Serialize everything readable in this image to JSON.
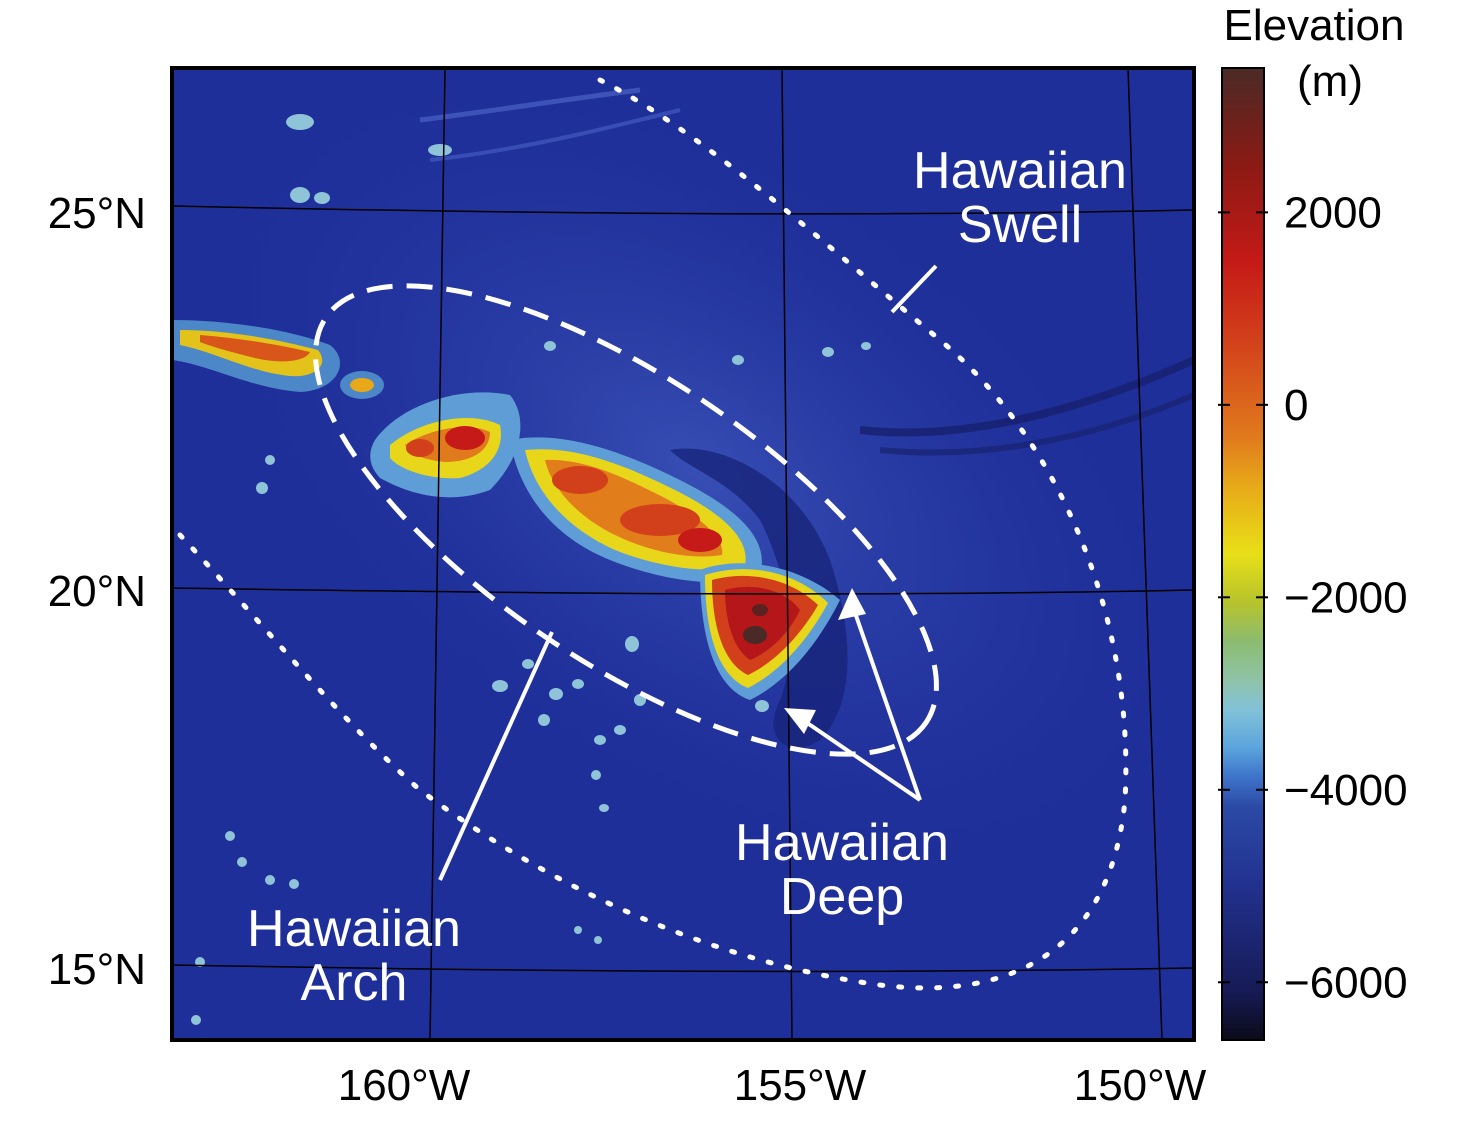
{
  "map": {
    "lat_labels": [
      "25°N",
      "20°N",
      "15°N"
    ],
    "lon_labels": [
      "160°W",
      "155°W",
      "150°W"
    ],
    "annotations": {
      "swell": [
        "Hawaiian",
        "Swell"
      ],
      "deep": [
        "Hawaiian",
        "Deep"
      ],
      "arch": [
        "Hawaiian",
        "Arch"
      ]
    }
  },
  "colorbar": {
    "title": [
      "Elevation",
      "(m)"
    ],
    "ticks": [
      "2000",
      "0",
      "−2000",
      "−4000",
      "−6000"
    ],
    "range": [
      -6600,
      3500
    ],
    "tick_values": [
      2000,
      0,
      -2000,
      -4000,
      -6000
    ]
  },
  "colors": {
    "ocean": "#1f2f9a",
    "annotation": "#ffffff"
  }
}
